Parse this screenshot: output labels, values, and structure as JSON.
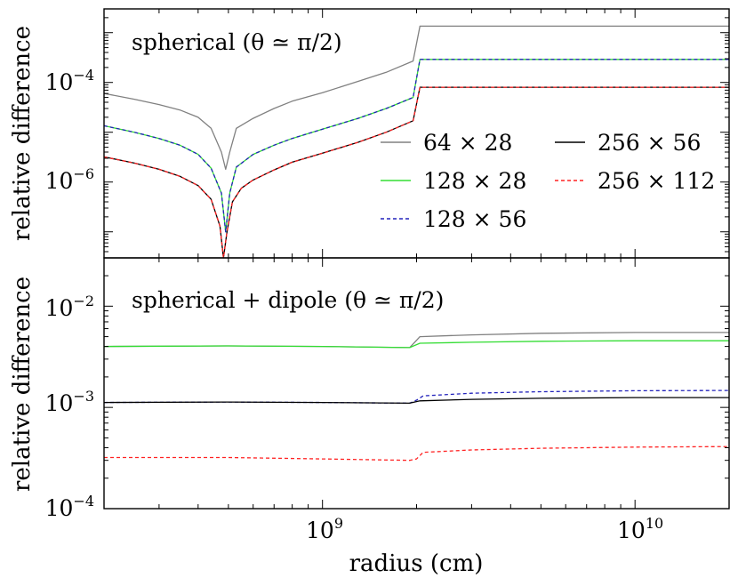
{
  "figure": {
    "xlabel": "radius (cm)",
    "ylabel": "relative difference"
  },
  "legend": {
    "entries": [
      {
        "label": "64 × 28",
        "color": "#808080",
        "dash": "solid"
      },
      {
        "label": "256 × 56",
        "color": "#000000",
        "dash": "solid"
      },
      {
        "label": "128 × 28",
        "color": "#33dd33",
        "dash": "solid"
      },
      {
        "label": "256 × 112",
        "color": "#ff2222",
        "dash": "dashed"
      },
      {
        "label": "128 × 56",
        "color": "#2222bb",
        "dash": "dashed"
      }
    ]
  },
  "chart_data": [
    {
      "type": "line",
      "title": "spherical (θ ≃ π/2)",
      "xlabel": "",
      "ylabel": "relative difference",
      "xscale": "log",
      "yscale": "log",
      "xlim": [
        200000000,
        20000000000
      ],
      "ylim": [
        3e-08,
        0.003
      ],
      "xticks": [
        {
          "base": "10",
          "exp": "9"
        },
        {
          "base": "10",
          "exp": "10"
        }
      ],
      "yticks": [
        {
          "value": 1e-06,
          "base": "10",
          "exp": "−6"
        },
        {
          "value": 0.0001,
          "base": "10",
          "exp": "−4"
        }
      ],
      "series": [
        {
          "name": "64 × 28",
          "color": "#808080",
          "dash": "solid",
          "points": [
            [
              200000000.0,
              6e-05
            ],
            [
              250000000.0,
              4.6e-05
            ],
            [
              300000000.0,
              3.6e-05
            ],
            [
              350000000.0,
              2.8e-05
            ],
            [
              400000000.0,
              2e-05
            ],
            [
              440000000.0,
              1.2e-05
            ],
            [
              475000000.0,
              4e-06
            ],
            [
              490000000.0,
              1.8e-06
            ],
            [
              505000000.0,
              4e-06
            ],
            [
              530000000.0,
              1.2e-05
            ],
            [
              600000000.0,
              1.9e-05
            ],
            [
              700000000.0,
              3e-05
            ],
            [
              800000000.0,
              4.2e-05
            ],
            [
              1000000000.0,
              6.2e-05
            ],
            [
              1300000000.0,
              0.000105
            ],
            [
              1600000000.0,
              0.00016
            ],
            [
              1950000000.0,
              0.00027
            ],
            [
              2050000000.0,
              0.00135
            ],
            [
              5000000000.0,
              0.00135
            ],
            [
              10000000000.0,
              0.00135
            ],
            [
              20000000000.0,
              0.00135
            ]
          ]
        },
        {
          "name": "128 × 28",
          "color": "#33dd33",
          "dash": "solid",
          "points": [
            [
              200000000.0,
              1.35e-05
            ],
            [
              250000000.0,
              1e-05
            ],
            [
              300000000.0,
              7.5e-06
            ],
            [
              350000000.0,
              5.5e-06
            ],
            [
              400000000.0,
              3.6e-06
            ],
            [
              440000000.0,
              1.9e-06
            ],
            [
              475000000.0,
              6e-07
            ],
            [
              490000000.0,
              1e-07
            ],
            [
              505000000.0,
              6e-07
            ],
            [
              530000000.0,
              2e-06
            ],
            [
              600000000.0,
              3.6e-06
            ],
            [
              700000000.0,
              5.5e-06
            ],
            [
              800000000.0,
              7.5e-06
            ],
            [
              1000000000.0,
              1.15e-05
            ],
            [
              1300000000.0,
              1.9e-05
            ],
            [
              1600000000.0,
              3e-05
            ],
            [
              1950000000.0,
              5e-05
            ],
            [
              2050000000.0,
              0.00029
            ],
            [
              5000000000.0,
              0.00029
            ],
            [
              10000000000.0,
              0.00029
            ],
            [
              20000000000.0,
              0.00029
            ]
          ]
        },
        {
          "name": "128 × 56",
          "color": "#2222bb",
          "dash": "dashed",
          "points": [
            [
              200000000.0,
              1.35e-05
            ],
            [
              250000000.0,
              1e-05
            ],
            [
              300000000.0,
              7.5e-06
            ],
            [
              350000000.0,
              5.5e-06
            ],
            [
              400000000.0,
              3.6e-06
            ],
            [
              440000000.0,
              1.9e-06
            ],
            [
              475000000.0,
              6e-07
            ],
            [
              490000000.0,
              1e-07
            ],
            [
              505000000.0,
              6e-07
            ],
            [
              530000000.0,
              2e-06
            ],
            [
              600000000.0,
              3.6e-06
            ],
            [
              700000000.0,
              5.5e-06
            ],
            [
              800000000.0,
              7.5e-06
            ],
            [
              1000000000.0,
              1.15e-05
            ],
            [
              1300000000.0,
              1.9e-05
            ],
            [
              1600000000.0,
              3e-05
            ],
            [
              1950000000.0,
              5e-05
            ],
            [
              2050000000.0,
              0.00029
            ],
            [
              5000000000.0,
              0.00029
            ],
            [
              10000000000.0,
              0.00029
            ],
            [
              20000000000.0,
              0.00029
            ]
          ]
        },
        {
          "name": "256 × 56",
          "color": "#000000",
          "dash": "solid",
          "points": [
            [
              200000000.0,
              3.2e-06
            ],
            [
              250000000.0,
              2.4e-06
            ],
            [
              300000000.0,
              1.8e-06
            ],
            [
              350000000.0,
              1.3e-06
            ],
            [
              400000000.0,
              8.5e-07
            ],
            [
              440000000.0,
              4.5e-07
            ],
            [
              470000000.0,
              1.3e-07
            ],
            [
              482000000.0,
              3e-08
            ],
            [
              495000000.0,
              1e-07
            ],
            [
              515000000.0,
              4e-07
            ],
            [
              550000000.0,
              7.5e-07
            ],
            [
              600000000.0,
              1.1e-06
            ],
            [
              700000000.0,
              1.75e-06
            ],
            [
              800000000.0,
              2.5e-06
            ],
            [
              1000000000.0,
              3.8e-06
            ],
            [
              1300000000.0,
              6.3e-06
            ],
            [
              1600000000.0,
              1e-05
            ],
            [
              1950000000.0,
              1.7e-05
            ],
            [
              2050000000.0,
              8e-05
            ],
            [
              5000000000.0,
              8e-05
            ],
            [
              10000000000.0,
              8e-05
            ],
            [
              20000000000.0,
              8e-05
            ]
          ]
        },
        {
          "name": "256 × 112",
          "color": "#ff2222",
          "dash": "dashed",
          "points": [
            [
              200000000.0,
              3.2e-06
            ],
            [
              250000000.0,
              2.4e-06
            ],
            [
              300000000.0,
              1.8e-06
            ],
            [
              350000000.0,
              1.3e-06
            ],
            [
              400000000.0,
              8.5e-07
            ],
            [
              440000000.0,
              4.5e-07
            ],
            [
              470000000.0,
              1.3e-07
            ],
            [
              482000000.0,
              3e-08
            ],
            [
              495000000.0,
              1e-07
            ],
            [
              515000000.0,
              4e-07
            ],
            [
              550000000.0,
              7.5e-07
            ],
            [
              600000000.0,
              1.1e-06
            ],
            [
              700000000.0,
              1.75e-06
            ],
            [
              800000000.0,
              2.5e-06
            ],
            [
              1000000000.0,
              3.8e-06
            ],
            [
              1300000000.0,
              6.3e-06
            ],
            [
              1600000000.0,
              1e-05
            ],
            [
              1950000000.0,
              1.7e-05
            ],
            [
              2050000000.0,
              8e-05
            ],
            [
              5000000000.0,
              8e-05
            ],
            [
              10000000000.0,
              8e-05
            ],
            [
              20000000000.0,
              8e-05
            ]
          ]
        }
      ]
    },
    {
      "type": "line",
      "title": "spherical + dipole (θ ≃ π/2)",
      "xlabel": "radius (cm)",
      "ylabel": "relative difference",
      "xscale": "log",
      "yscale": "log",
      "xlim": [
        200000000,
        20000000000
      ],
      "ylim": [
        0.0001,
        0.03
      ],
      "xticks": [
        {
          "base": "10",
          "exp": "9"
        },
        {
          "base": "10",
          "exp": "10"
        }
      ],
      "yticks": [
        {
          "value": 0.0001,
          "base": "10",
          "exp": "−4"
        },
        {
          "value": 0.001,
          "base": "10",
          "exp": "−3"
        },
        {
          "value": 0.01,
          "base": "10",
          "exp": "−2"
        }
      ],
      "series": [
        {
          "name": "64 × 28",
          "color": "#808080",
          "dash": "solid",
          "points": [
            [
              200000000.0,
              0.004
            ],
            [
              500000000.0,
              0.00405
            ],
            [
              1000000000.0,
              0.004
            ],
            [
              1900000000.0,
              0.0039
            ],
            [
              2050000000.0,
              0.005
            ],
            [
              3000000000.0,
              0.0052
            ],
            [
              5000000000.0,
              0.0054
            ],
            [
              10000000000.0,
              0.0055
            ],
            [
              20000000000.0,
              0.0055
            ]
          ]
        },
        {
          "name": "128 × 28",
          "color": "#33dd33",
          "dash": "solid",
          "points": [
            [
              200000000.0,
              0.004
            ],
            [
              500000000.0,
              0.00405
            ],
            [
              1000000000.0,
              0.004
            ],
            [
              1900000000.0,
              0.0039
            ],
            [
              2050000000.0,
              0.0043
            ],
            [
              3000000000.0,
              0.0044
            ],
            [
              5000000000.0,
              0.0045
            ],
            [
              10000000000.0,
              0.00455
            ],
            [
              20000000000.0,
              0.00455
            ]
          ]
        },
        {
          "name": "128 × 56",
          "color": "#2222bb",
          "dash": "dashed",
          "points": [
            [
              200000000.0,
              0.00112
            ],
            [
              500000000.0,
              0.00113
            ],
            [
              1000000000.0,
              0.00112
            ],
            [
              1900000000.0,
              0.0011
            ],
            [
              2000000000.0,
              0.00118
            ],
            [
              2100000000.0,
              0.0013
            ],
            [
              3000000000.0,
              0.00138
            ],
            [
              5000000000.0,
              0.00143
            ],
            [
              10000000000.0,
              0.00146
            ],
            [
              20000000000.0,
              0.00147
            ]
          ]
        },
        {
          "name": "256 × 56",
          "color": "#000000",
          "dash": "solid",
          "points": [
            [
              200000000.0,
              0.00112
            ],
            [
              500000000.0,
              0.00113
            ],
            [
              1000000000.0,
              0.00112
            ],
            [
              1900000000.0,
              0.0011
            ],
            [
              2050000000.0,
              0.00116
            ],
            [
              3000000000.0,
              0.0012
            ],
            [
              5000000000.0,
              0.00123
            ],
            [
              10000000000.0,
              0.00125
            ],
            [
              20000000000.0,
              0.00125
            ]
          ]
        },
        {
          "name": "256 × 112",
          "color": "#ff2222",
          "dash": "dashed",
          "points": [
            [
              200000000.0,
              0.00032
            ],
            [
              500000000.0,
              0.00032
            ],
            [
              1000000000.0,
              0.00031
            ],
            [
              1900000000.0,
              0.0003
            ],
            [
              2000000000.0,
              0.00031
            ],
            [
              2100000000.0,
              0.00036
            ],
            [
              3000000000.0,
              0.00038
            ],
            [
              5000000000.0,
              0.000395
            ],
            [
              10000000000.0,
              0.000405
            ],
            [
              20000000000.0,
              0.00041
            ]
          ]
        }
      ]
    }
  ]
}
